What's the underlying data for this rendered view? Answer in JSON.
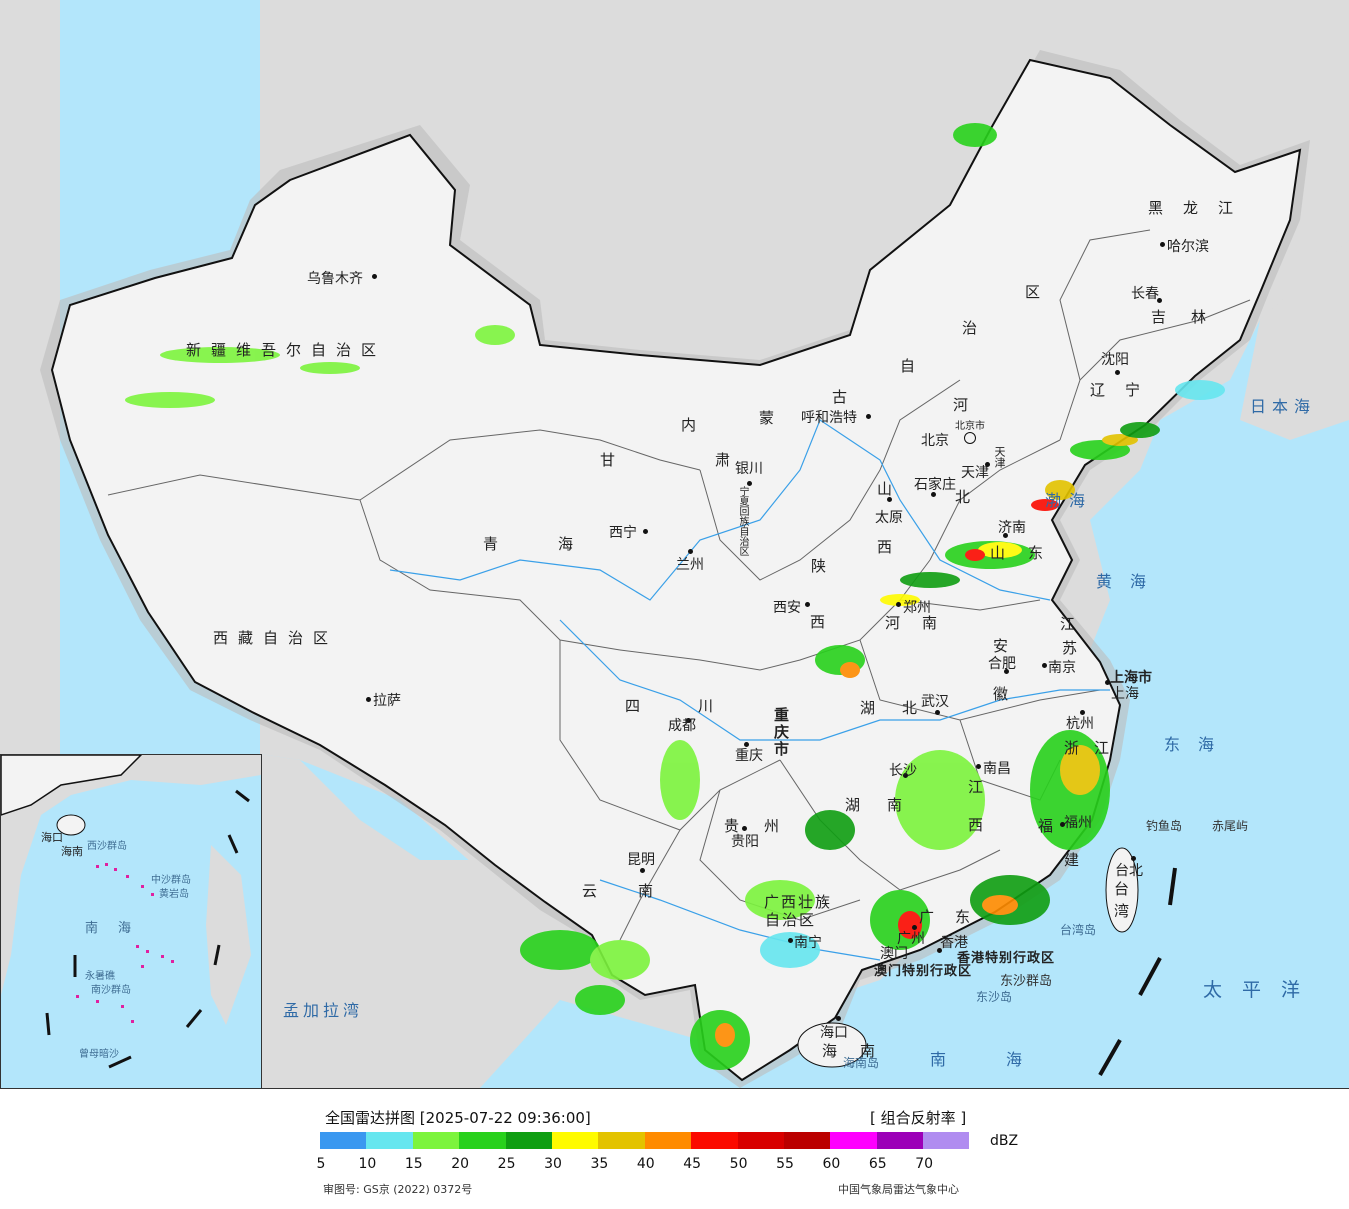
{
  "title": "全国雷达拼图 [2025-07-22 09:36:00]",
  "product": "[ 组合反射率 ]",
  "unit": "dBZ",
  "scale": {
    "colors": [
      "#3a98f0",
      "#66e6ef",
      "#7cf43d",
      "#28d11c",
      "#0f9e12",
      "#fffb00",
      "#e3c300",
      "#ff8b00",
      "#fb0a00",
      "#d80000",
      "#bb0000",
      "#ff00ff",
      "#9c00b8",
      "#b08cf0"
    ],
    "ticks": [
      "5",
      "10",
      "15",
      "20",
      "25",
      "30",
      "35",
      "40",
      "45",
      "50",
      "55",
      "60",
      "65",
      "70"
    ]
  },
  "footer": {
    "approval": "审图号: GS京 (2022) 0372号",
    "agency": "中国气象局雷达气象中心"
  },
  "cities": {
    "urumqi": "乌鲁木齐",
    "lhasa": "拉萨",
    "xining": "西宁",
    "lanzhou": "兰州",
    "yinchuan": "银川",
    "hohhot": "呼和浩特",
    "beijing": "北京",
    "beijing_shi": "北京市",
    "tianjin": "天津",
    "tianjin_shi": "天津",
    "shijiazhuang": "石家庄",
    "taiyuan": "太原",
    "xian": "西安",
    "zhengzhou": "郑州",
    "jinan": "济南",
    "hefei": "合肥",
    "nanjing": "南京",
    "shanghai": "上海",
    "shanghai_shi": "上海市",
    "hangzhou": "杭州",
    "wuhan": "武汉",
    "changsha": "长沙",
    "nanchang": "南昌",
    "fuzhou": "福州",
    "taibei": "台北",
    "chengdu": "成都",
    "chongqing": "重庆",
    "chongqing_shi": "重庆市",
    "guiyang": "贵阳",
    "kunming": "昆明",
    "nanning": "南宁",
    "guangzhou": "广州",
    "xianggang": "香港",
    "aomen": "澳门",
    "haikou": "海口",
    "harbin": "哈尔滨",
    "changchun": "长春",
    "shenyang": "沈阳"
  },
  "provinces": {
    "xinjiang": "新疆维吾尔自治区",
    "xizang": "西藏自治区",
    "qinghai": "青海",
    "gansu": "甘肃",
    "neimenggu_1": "内",
    "neimenggu_2": "蒙",
    "neimenggu_3": "古",
    "neimenggu_4": "自",
    "neimenggu_5": "治",
    "neimenggu_6": "区",
    "ningxia": "宁夏回族自治区",
    "shaanxi_1": "陕",
    "shaanxi_2": "西",
    "shanxi_1": "山",
    "shanxi_2": "西",
    "hebei_1": "河",
    "hebei_2": "北",
    "shandong_1": "山",
    "shandong_2": "东",
    "henan_1": "河",
    "henan_2": "南",
    "jiangsu_1": "江",
    "jiangsu_2": "苏",
    "anhui_1": "安",
    "anhui_2": "徽",
    "hubei_1": "湖",
    "hubei_2": "北",
    "sichuan_1": "四",
    "sichuan_2": "川",
    "guizhou_1": "贵",
    "guizhou_2": "州",
    "yunnan_1": "云",
    "yunnan_2": "南",
    "hunan_1": "湖",
    "hunan_2": "南",
    "jiangxi_1": "江",
    "jiangxi_2": "西",
    "zhejiang_1": "浙",
    "zhejiang_2": "江",
    "fujian_1": "福",
    "fujian_2": "建",
    "guangdong_1": "广",
    "guangdong_2": "东",
    "guangxi_1": "广西壮族",
    "guangxi_2": "自治区",
    "hainan_1": "海",
    "hainan_2": "南",
    "heilongjiang": "黑龙江",
    "jilin": "吉林",
    "liaoning": "辽宁",
    "taiwan_1": "台",
    "taiwan_2": "湾",
    "xianggang_tbxzq": "香港特别行政区",
    "aomen_tbxzq": "澳门特别行政区"
  },
  "seas": {
    "bohai": "渤海",
    "huanghai": "黄海",
    "donghai": "东海",
    "nanhai": "南海",
    "taipingyang": "太平洋",
    "ribenhai": "日本海",
    "mengjialawan": "孟加拉湾",
    "inset_nanhai": "南海"
  },
  "islands": {
    "diaoyudao": "钓鱼岛",
    "chiweiyu": "赤尾屿",
    "taiwandao": "台湾岛",
    "dongshaqundao": "东沙群岛",
    "dongshadao": "东沙岛",
    "hainandao": "海南岛"
  },
  "inset": {
    "xisha": "西沙群岛",
    "zhongsha": "中沙群岛",
    "huangyandao": "黄岩岛",
    "nansha": "南沙群岛",
    "yongshu": "永暑礁",
    "zengmu": "曾母暗沙",
    "haikou": "海口",
    "hainan": "海南"
  }
}
